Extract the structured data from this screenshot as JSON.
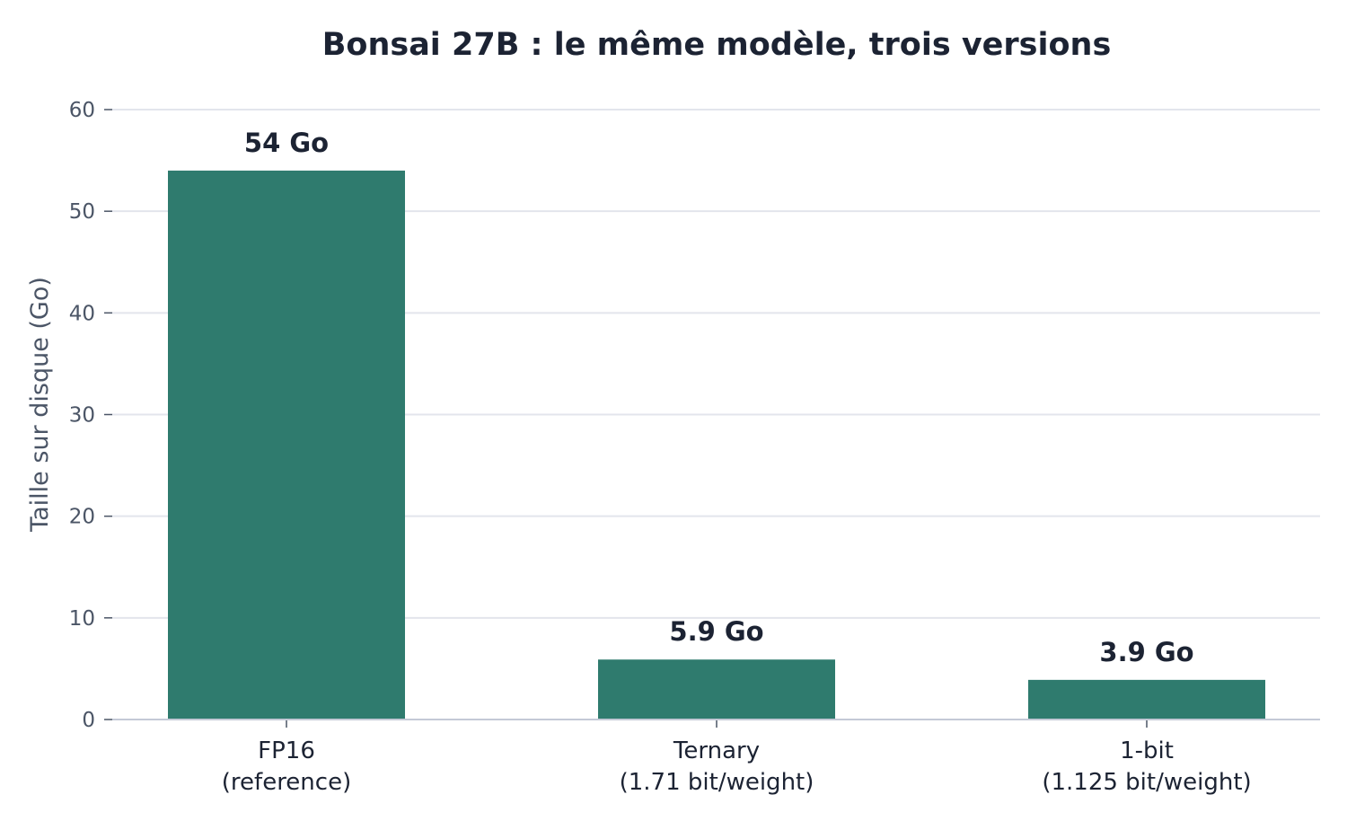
{
  "chart_data": {
    "type": "bar",
    "title": "Bonsai 27B : le même modèle, trois versions",
    "xlabel": "",
    "ylabel": "Taille sur disque (Go)",
    "categories": [
      [
        "FP16",
        "(reference)"
      ],
      [
        "Ternary",
        "(1.71 bit/weight)"
      ],
      [
        "1-bit",
        "(1.125 bit/weight)"
      ]
    ],
    "values": [
      54,
      5.9,
      3.9
    ],
    "data_labels": [
      "54 Go",
      "5.9 Go",
      "3.9 Go"
    ],
    "ylim": [
      0,
      60
    ],
    "yticks": [
      0,
      10,
      20,
      30,
      40,
      50,
      60
    ],
    "grid": true,
    "legend": "none",
    "colors": {
      "bar": "#2f7b6e",
      "grid": "#e3e5ec",
      "axis": "#c4c9d6",
      "tick": "#4b5566",
      "text": "#1c2333"
    }
  }
}
